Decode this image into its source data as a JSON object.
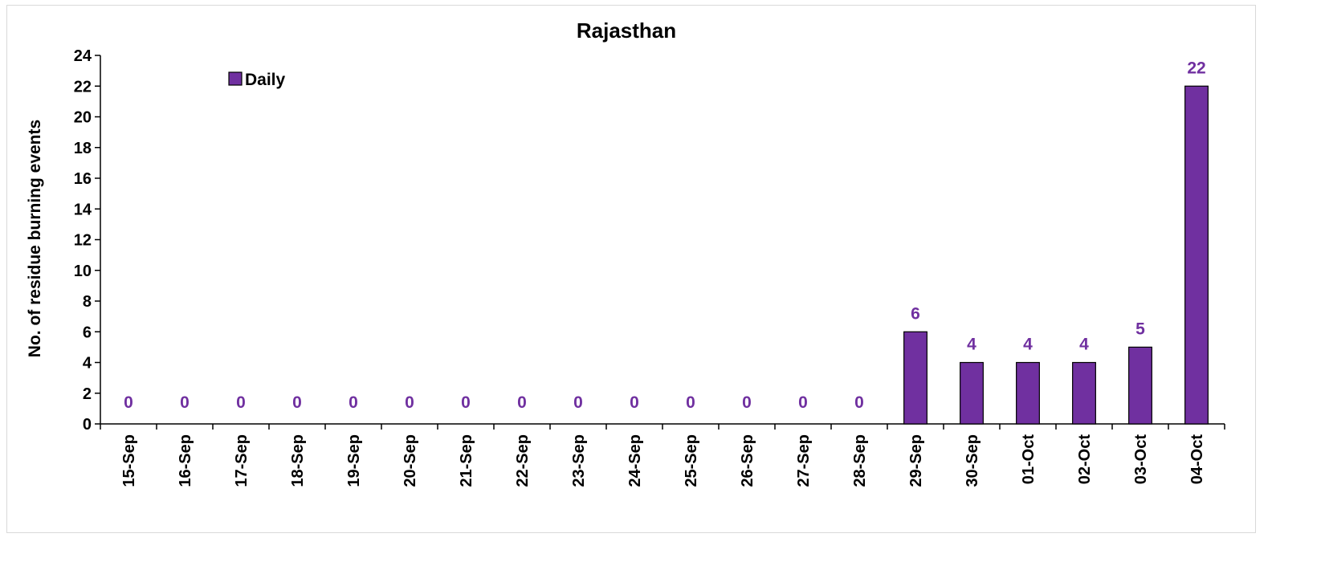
{
  "chart_data": {
    "type": "bar",
    "title": "Rajasthan",
    "ylabel": "No. of residue burning events",
    "xlabel": "",
    "ylim": [
      0,
      24
    ],
    "yticks": [
      0,
      2,
      4,
      6,
      8,
      10,
      12,
      14,
      16,
      18,
      20,
      22,
      24
    ],
    "categories": [
      "15-Sep",
      "16-Sep",
      "17-Sep",
      "18-Sep",
      "19-Sep",
      "20-Sep",
      "21-Sep",
      "22-Sep",
      "23-Sep",
      "24-Sep",
      "25-Sep",
      "26-Sep",
      "27-Sep",
      "28-Sep",
      "29-Sep",
      "30-Sep",
      "01-Oct",
      "02-Oct",
      "03-Oct",
      "04-Oct"
    ],
    "series": [
      {
        "name": "Daily",
        "values": [
          0,
          0,
          0,
          0,
          0,
          0,
          0,
          0,
          0,
          0,
          0,
          0,
          0,
          0,
          6,
          4,
          4,
          4,
          5,
          22
        ],
        "color": "#7030a0",
        "label_color": "#7030a0"
      }
    ],
    "legend": {
      "position": "top-left",
      "entries": [
        "Daily"
      ]
    },
    "grid": false,
    "data_labels": true
  }
}
